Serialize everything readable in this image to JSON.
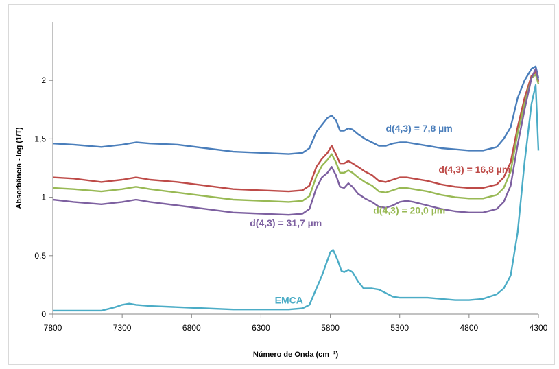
{
  "chart_data": {
    "type": "line",
    "title": "",
    "xlabel": "Número de Onda (cm⁻¹)",
    "ylabel": "Absorbância - log (1/T)",
    "xlim": [
      7800,
      4300
    ],
    "ylim": [
      0,
      2.5
    ],
    "x_reversed": true,
    "grid": false,
    "legend": "none",
    "x_ticks": [
      "7800",
      "7300",
      "6800",
      "6300",
      "5800",
      "5300",
      "4800",
      "4300"
    ],
    "y_ticks": [
      {
        "value": 0,
        "label": "0"
      },
      {
        "value": 0.5,
        "label": "0,5"
      },
      {
        "value": 1,
        "label": "1"
      },
      {
        "value": 1.5,
        "label": "1,5"
      },
      {
        "value": 2,
        "label": "2"
      }
    ],
    "series": [
      {
        "name": "d(4,3) = 7,8 µm",
        "color": "#4a7ebb",
        "points": [
          [
            7800,
            1.46
          ],
          [
            7650,
            1.45
          ],
          [
            7450,
            1.43
          ],
          [
            7300,
            1.45
          ],
          [
            7200,
            1.47
          ],
          [
            7100,
            1.46
          ],
          [
            6900,
            1.45
          ],
          [
            6700,
            1.42
          ],
          [
            6500,
            1.39
          ],
          [
            6300,
            1.38
          ],
          [
            6100,
            1.37
          ],
          [
            6000,
            1.38
          ],
          [
            5950,
            1.42
          ],
          [
            5900,
            1.56
          ],
          [
            5860,
            1.62
          ],
          [
            5820,
            1.68
          ],
          [
            5790,
            1.7
          ],
          [
            5760,
            1.66
          ],
          [
            5730,
            1.57
          ],
          [
            5700,
            1.57
          ],
          [
            5670,
            1.59
          ],
          [
            5640,
            1.58
          ],
          [
            5600,
            1.54
          ],
          [
            5550,
            1.5
          ],
          [
            5500,
            1.47
          ],
          [
            5450,
            1.44
          ],
          [
            5400,
            1.44
          ],
          [
            5350,
            1.46
          ],
          [
            5300,
            1.47
          ],
          [
            5250,
            1.47
          ],
          [
            5200,
            1.46
          ],
          [
            5100,
            1.44
          ],
          [
            5000,
            1.42
          ],
          [
            4900,
            1.41
          ],
          [
            4800,
            1.4
          ],
          [
            4700,
            1.4
          ],
          [
            4600,
            1.43
          ],
          [
            4550,
            1.5
          ],
          [
            4500,
            1.6
          ],
          [
            4450,
            1.85
          ],
          [
            4400,
            2.0
          ],
          [
            4350,
            2.1
          ],
          [
            4320,
            2.12
          ],
          [
            4300,
            2.02
          ]
        ]
      },
      {
        "name": "d(4,3) = 16,8 µm",
        "color": "#be4b48",
        "points": [
          [
            7800,
            1.17
          ],
          [
            7650,
            1.16
          ],
          [
            7450,
            1.13
          ],
          [
            7300,
            1.15
          ],
          [
            7200,
            1.17
          ],
          [
            7100,
            1.15
          ],
          [
            6900,
            1.13
          ],
          [
            6700,
            1.1
          ],
          [
            6500,
            1.07
          ],
          [
            6300,
            1.06
          ],
          [
            6100,
            1.05
          ],
          [
            6000,
            1.06
          ],
          [
            5950,
            1.1
          ],
          [
            5900,
            1.26
          ],
          [
            5860,
            1.33
          ],
          [
            5820,
            1.38
          ],
          [
            5790,
            1.44
          ],
          [
            5760,
            1.37
          ],
          [
            5730,
            1.29
          ],
          [
            5700,
            1.29
          ],
          [
            5670,
            1.31
          ],
          [
            5640,
            1.29
          ],
          [
            5600,
            1.26
          ],
          [
            5550,
            1.22
          ],
          [
            5500,
            1.19
          ],
          [
            5450,
            1.14
          ],
          [
            5400,
            1.13
          ],
          [
            5350,
            1.15
          ],
          [
            5300,
            1.17
          ],
          [
            5250,
            1.17
          ],
          [
            5200,
            1.16
          ],
          [
            5100,
            1.14
          ],
          [
            5000,
            1.11
          ],
          [
            4900,
            1.09
          ],
          [
            4800,
            1.08
          ],
          [
            4700,
            1.08
          ],
          [
            4600,
            1.11
          ],
          [
            4550,
            1.17
          ],
          [
            4500,
            1.3
          ],
          [
            4450,
            1.6
          ],
          [
            4400,
            1.85
          ],
          [
            4350,
            2.04
          ],
          [
            4320,
            2.07
          ],
          [
            4300,
            1.99
          ]
        ]
      },
      {
        "name": "d(4,3) = 20,0 µm",
        "color": "#98b954",
        "points": [
          [
            7800,
            1.08
          ],
          [
            7650,
            1.07
          ],
          [
            7450,
            1.05
          ],
          [
            7300,
            1.07
          ],
          [
            7200,
            1.09
          ],
          [
            7100,
            1.07
          ],
          [
            6900,
            1.04
          ],
          [
            6700,
            1.01
          ],
          [
            6500,
            0.98
          ],
          [
            6300,
            0.97
          ],
          [
            6100,
            0.96
          ],
          [
            6000,
            0.97
          ],
          [
            5950,
            1.01
          ],
          [
            5900,
            1.18
          ],
          [
            5860,
            1.27
          ],
          [
            5820,
            1.32
          ],
          [
            5790,
            1.37
          ],
          [
            5760,
            1.3
          ],
          [
            5730,
            1.21
          ],
          [
            5700,
            1.21
          ],
          [
            5670,
            1.23
          ],
          [
            5640,
            1.21
          ],
          [
            5600,
            1.17
          ],
          [
            5550,
            1.13
          ],
          [
            5500,
            1.1
          ],
          [
            5450,
            1.05
          ],
          [
            5400,
            1.04
          ],
          [
            5350,
            1.06
          ],
          [
            5300,
            1.08
          ],
          [
            5250,
            1.08
          ],
          [
            5200,
            1.07
          ],
          [
            5100,
            1.05
          ],
          [
            5000,
            1.02
          ],
          [
            4900,
            1.0
          ],
          [
            4800,
            0.99
          ],
          [
            4700,
            0.99
          ],
          [
            4600,
            1.02
          ],
          [
            4550,
            1.08
          ],
          [
            4500,
            1.22
          ],
          [
            4450,
            1.55
          ],
          [
            4400,
            1.8
          ],
          [
            4350,
            2.02
          ],
          [
            4320,
            2.05
          ],
          [
            4300,
            1.97
          ]
        ]
      },
      {
        "name": "d(4,3) = 31,7 µm",
        "color": "#7d60a0",
        "points": [
          [
            7800,
            0.98
          ],
          [
            7650,
            0.96
          ],
          [
            7450,
            0.94
          ],
          [
            7300,
            0.96
          ],
          [
            7200,
            0.98
          ],
          [
            7100,
            0.96
          ],
          [
            6900,
            0.93
          ],
          [
            6700,
            0.9
          ],
          [
            6500,
            0.87
          ],
          [
            6300,
            0.86
          ],
          [
            6100,
            0.85
          ],
          [
            6000,
            0.86
          ],
          [
            5950,
            0.9
          ],
          [
            5900,
            1.08
          ],
          [
            5860,
            1.17
          ],
          [
            5820,
            1.21
          ],
          [
            5790,
            1.26
          ],
          [
            5760,
            1.19
          ],
          [
            5730,
            1.09
          ],
          [
            5700,
            1.08
          ],
          [
            5670,
            1.12
          ],
          [
            5640,
            1.09
          ],
          [
            5600,
            1.03
          ],
          [
            5550,
            0.99
          ],
          [
            5500,
            0.96
          ],
          [
            5450,
            0.92
          ],
          [
            5400,
            0.91
          ],
          [
            5350,
            0.93
          ],
          [
            5300,
            0.96
          ],
          [
            5250,
            0.97
          ],
          [
            5200,
            0.96
          ],
          [
            5100,
            0.93
          ],
          [
            5000,
            0.9
          ],
          [
            4900,
            0.88
          ],
          [
            4800,
            0.87
          ],
          [
            4700,
            0.87
          ],
          [
            4600,
            0.9
          ],
          [
            4550,
            0.96
          ],
          [
            4500,
            1.1
          ],
          [
            4450,
            1.45
          ],
          [
            4400,
            1.75
          ],
          [
            4350,
            2.02
          ],
          [
            4320,
            2.1
          ],
          [
            4300,
            2.0
          ]
        ]
      },
      {
        "name": "EMCA",
        "color": "#4bacc6",
        "points": [
          [
            7800,
            0.03
          ],
          [
            7600,
            0.03
          ],
          [
            7450,
            0.03
          ],
          [
            7350,
            0.06
          ],
          [
            7300,
            0.08
          ],
          [
            7250,
            0.09
          ],
          [
            7200,
            0.08
          ],
          [
            7100,
            0.07
          ],
          [
            6900,
            0.06
          ],
          [
            6700,
            0.05
          ],
          [
            6500,
            0.04
          ],
          [
            6300,
            0.04
          ],
          [
            6100,
            0.04
          ],
          [
            6000,
            0.05
          ],
          [
            5950,
            0.08
          ],
          [
            5900,
            0.22
          ],
          [
            5860,
            0.33
          ],
          [
            5830,
            0.43
          ],
          [
            5800,
            0.53
          ],
          [
            5780,
            0.55
          ],
          [
            5750,
            0.47
          ],
          [
            5720,
            0.37
          ],
          [
            5700,
            0.36
          ],
          [
            5670,
            0.38
          ],
          [
            5640,
            0.36
          ],
          [
            5600,
            0.28
          ],
          [
            5560,
            0.22
          ],
          [
            5500,
            0.22
          ],
          [
            5450,
            0.21
          ],
          [
            5400,
            0.18
          ],
          [
            5350,
            0.15
          ],
          [
            5300,
            0.14
          ],
          [
            5200,
            0.14
          ],
          [
            5100,
            0.14
          ],
          [
            5000,
            0.13
          ],
          [
            4900,
            0.12
          ],
          [
            4800,
            0.12
          ],
          [
            4700,
            0.13
          ],
          [
            4600,
            0.17
          ],
          [
            4550,
            0.22
          ],
          [
            4500,
            0.33
          ],
          [
            4450,
            0.7
          ],
          [
            4400,
            1.3
          ],
          [
            4350,
            1.8
          ],
          [
            4320,
            1.96
          ],
          [
            4300,
            1.4
          ]
        ]
      }
    ],
    "annotations": [
      {
        "text": "d(4,3) = 7,8 µm",
        "x": 5400,
        "y": 1.56,
        "color": "#4a7ebb"
      },
      {
        "text": "d(4,3) = 16,8 µm",
        "x": 5020,
        "y": 1.21,
        "color": "#be4b48"
      },
      {
        "text": "d(4,3) = 20,0 µm",
        "x": 5490,
        "y": 0.86,
        "color": "#98b954"
      },
      {
        "text": "d(4,3) = 31,7 µm",
        "x": 6380,
        "y": 0.75,
        "color": "#7d60a0"
      },
      {
        "text": "EMCA",
        "x": 6200,
        "y": 0.09,
        "color": "#4bacc6"
      }
    ]
  }
}
